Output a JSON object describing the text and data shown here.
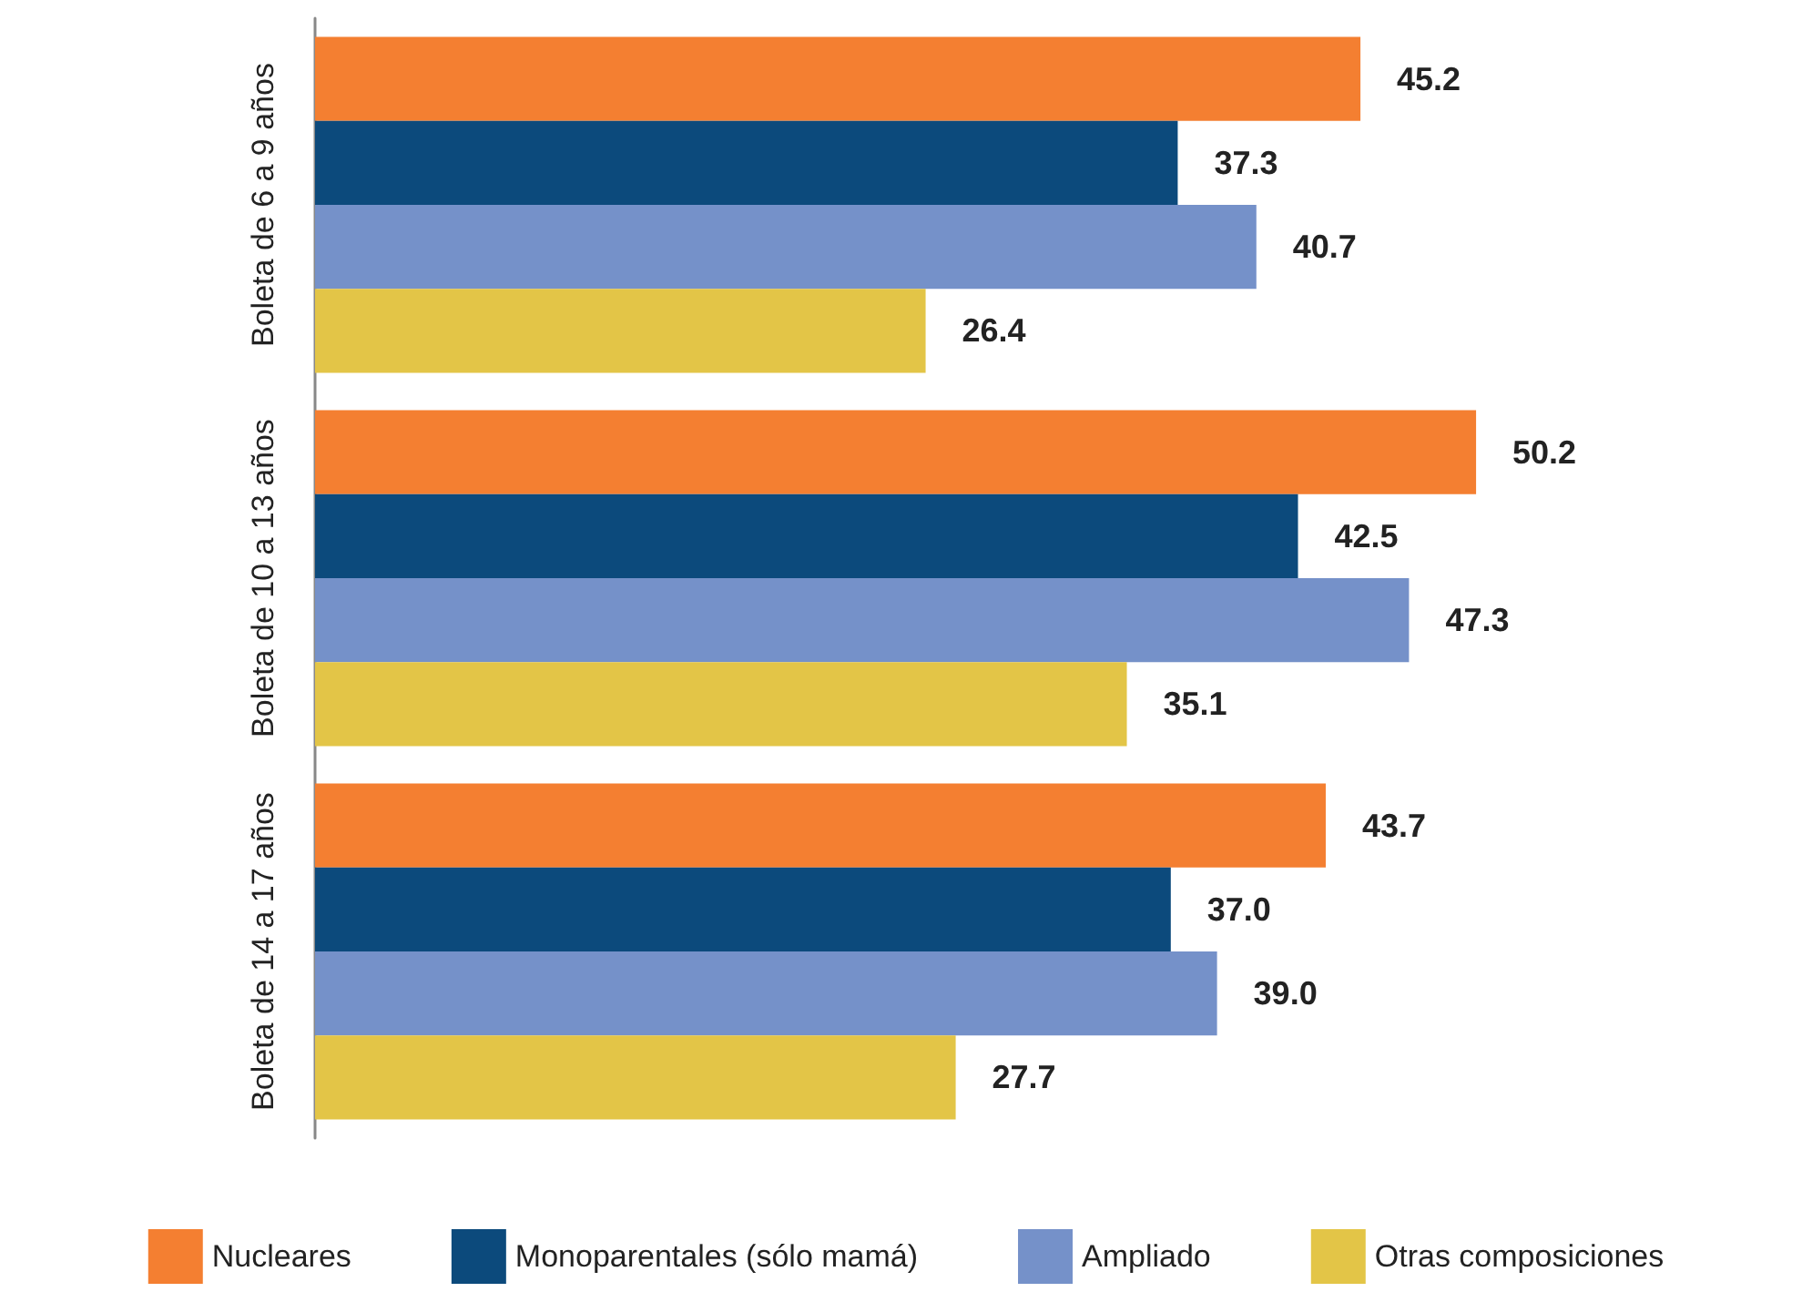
{
  "chart_data": {
    "type": "bar",
    "orientation": "horizontal",
    "categories": [
      "Boleta de 6 a 9 años",
      "Boleta de 10 a 13 años",
      "Boleta de 14 a 17 años"
    ],
    "series": [
      {
        "name": "Nucleares",
        "color": "#f47f31",
        "values": [
          45.2,
          50.2,
          43.7
        ],
        "value_labels": [
          "45.2",
          "50.2",
          "43.7"
        ]
      },
      {
        "name": "Monoparentales (sólo mamá)",
        "color": "#0c4a7c",
        "values": [
          37.3,
          42.5,
          37.0
        ],
        "value_labels": [
          "37.3",
          "42.5",
          "37.0"
        ]
      },
      {
        "name": "Ampliado",
        "color": "#7591c9",
        "values": [
          40.7,
          47.3,
          39.0
        ],
        "value_labels": [
          "40.7",
          "47.3",
          "39.0"
        ]
      },
      {
        "name": "Otras composiciones",
        "color": "#e3c547",
        "values": [
          26.4,
          35.1,
          27.7
        ],
        "value_labels": [
          "26.4",
          "35.1",
          "27.7"
        ]
      }
    ],
    "legend": "bottom",
    "grid": false
  }
}
